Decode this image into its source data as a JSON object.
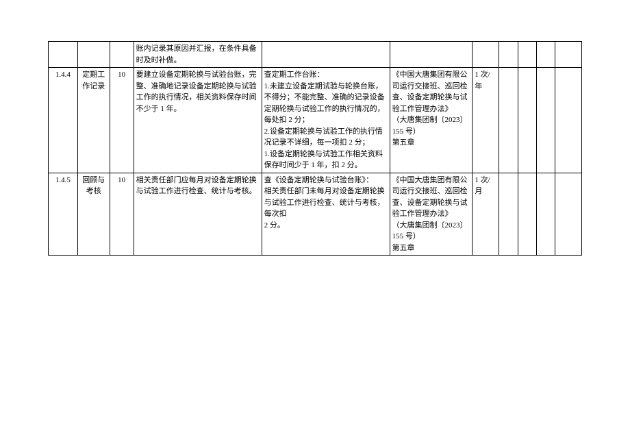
{
  "table": {
    "colors": {
      "border": "#000000",
      "background": "#ffffff",
      "text": "#000000"
    },
    "font": {
      "family": "SimSun",
      "size_pt": 9,
      "line_height": 1.5
    },
    "column_widths_percent": [
      5.5,
      6,
      4.5,
      24,
      24,
      15.5,
      5,
      3.5,
      3.5,
      3.5,
      5
    ],
    "column_align": [
      "center",
      "center",
      "center",
      "left",
      "left",
      "left",
      "left",
      "left",
      "left",
      "left",
      "left"
    ],
    "rows": [
      {
        "id": "",
        "name": "",
        "score": "",
        "content": "账内记录其原因并汇报，在条件具备时及时补做。",
        "standard": "",
        "basis": "",
        "cycle": "",
        "r1": "",
        "r2": "",
        "r3": "",
        "r4": ""
      },
      {
        "id": "1.4.4",
        "name": "定期工作记录",
        "score": "10",
        "content": "要建立设备定期轮换与试验台账，完整、准确地记录设备定期轮换与试验工作的执行情况，相关资料保存时间不少于 1 年。",
        "standard_lines": [
          "查定期工作台账：",
          "1.未建立设备定期试验与轮换台账，不得分；不能完整、准确的记录设备定期轮换与试验工作的执行情况的，每处扣 2 分；",
          "2.设备定期轮换与试验工作的执行情况记录不详细，每一项扣 2 分；",
          "1.设备定期轮换与试验工作相关资料保存时间少于 1 年，扣 2 分。"
        ],
        "basis_lines": [
          "《中国大唐集团有限公司运行交接班、巡回检查、设备定期轮换与试验工作管理办法》",
          "（大唐集团制〔2023〕155 号）",
          "第五章"
        ],
        "cycle": "1 次/年",
        "r1": "",
        "r2": "",
        "r3": "",
        "r4": ""
      },
      {
        "id": "1.4.5",
        "name": "回顾与考核",
        "score": "10",
        "content": "相关责任部门应每月对设备定期轮换与试验工作进行检查、统计与考核。",
        "standard_lines": [
          "查《设备定期轮换与试验台账》：",
          "相关责任部门未每月对设备定期轮换与试验工作进行检查、统计与考核，每次扣",
          "2 分。"
        ],
        "basis_lines": [
          "《中国大唐集团有限公司运行交接班、巡回检查、设备定期轮换与试验工作管理办法》",
          "（大唐集团制〔2023〕155 号）",
          "第五章"
        ],
        "cycle": "1 次/月",
        "r1": "",
        "r2": "",
        "r3": "",
        "r4": ""
      }
    ]
  }
}
